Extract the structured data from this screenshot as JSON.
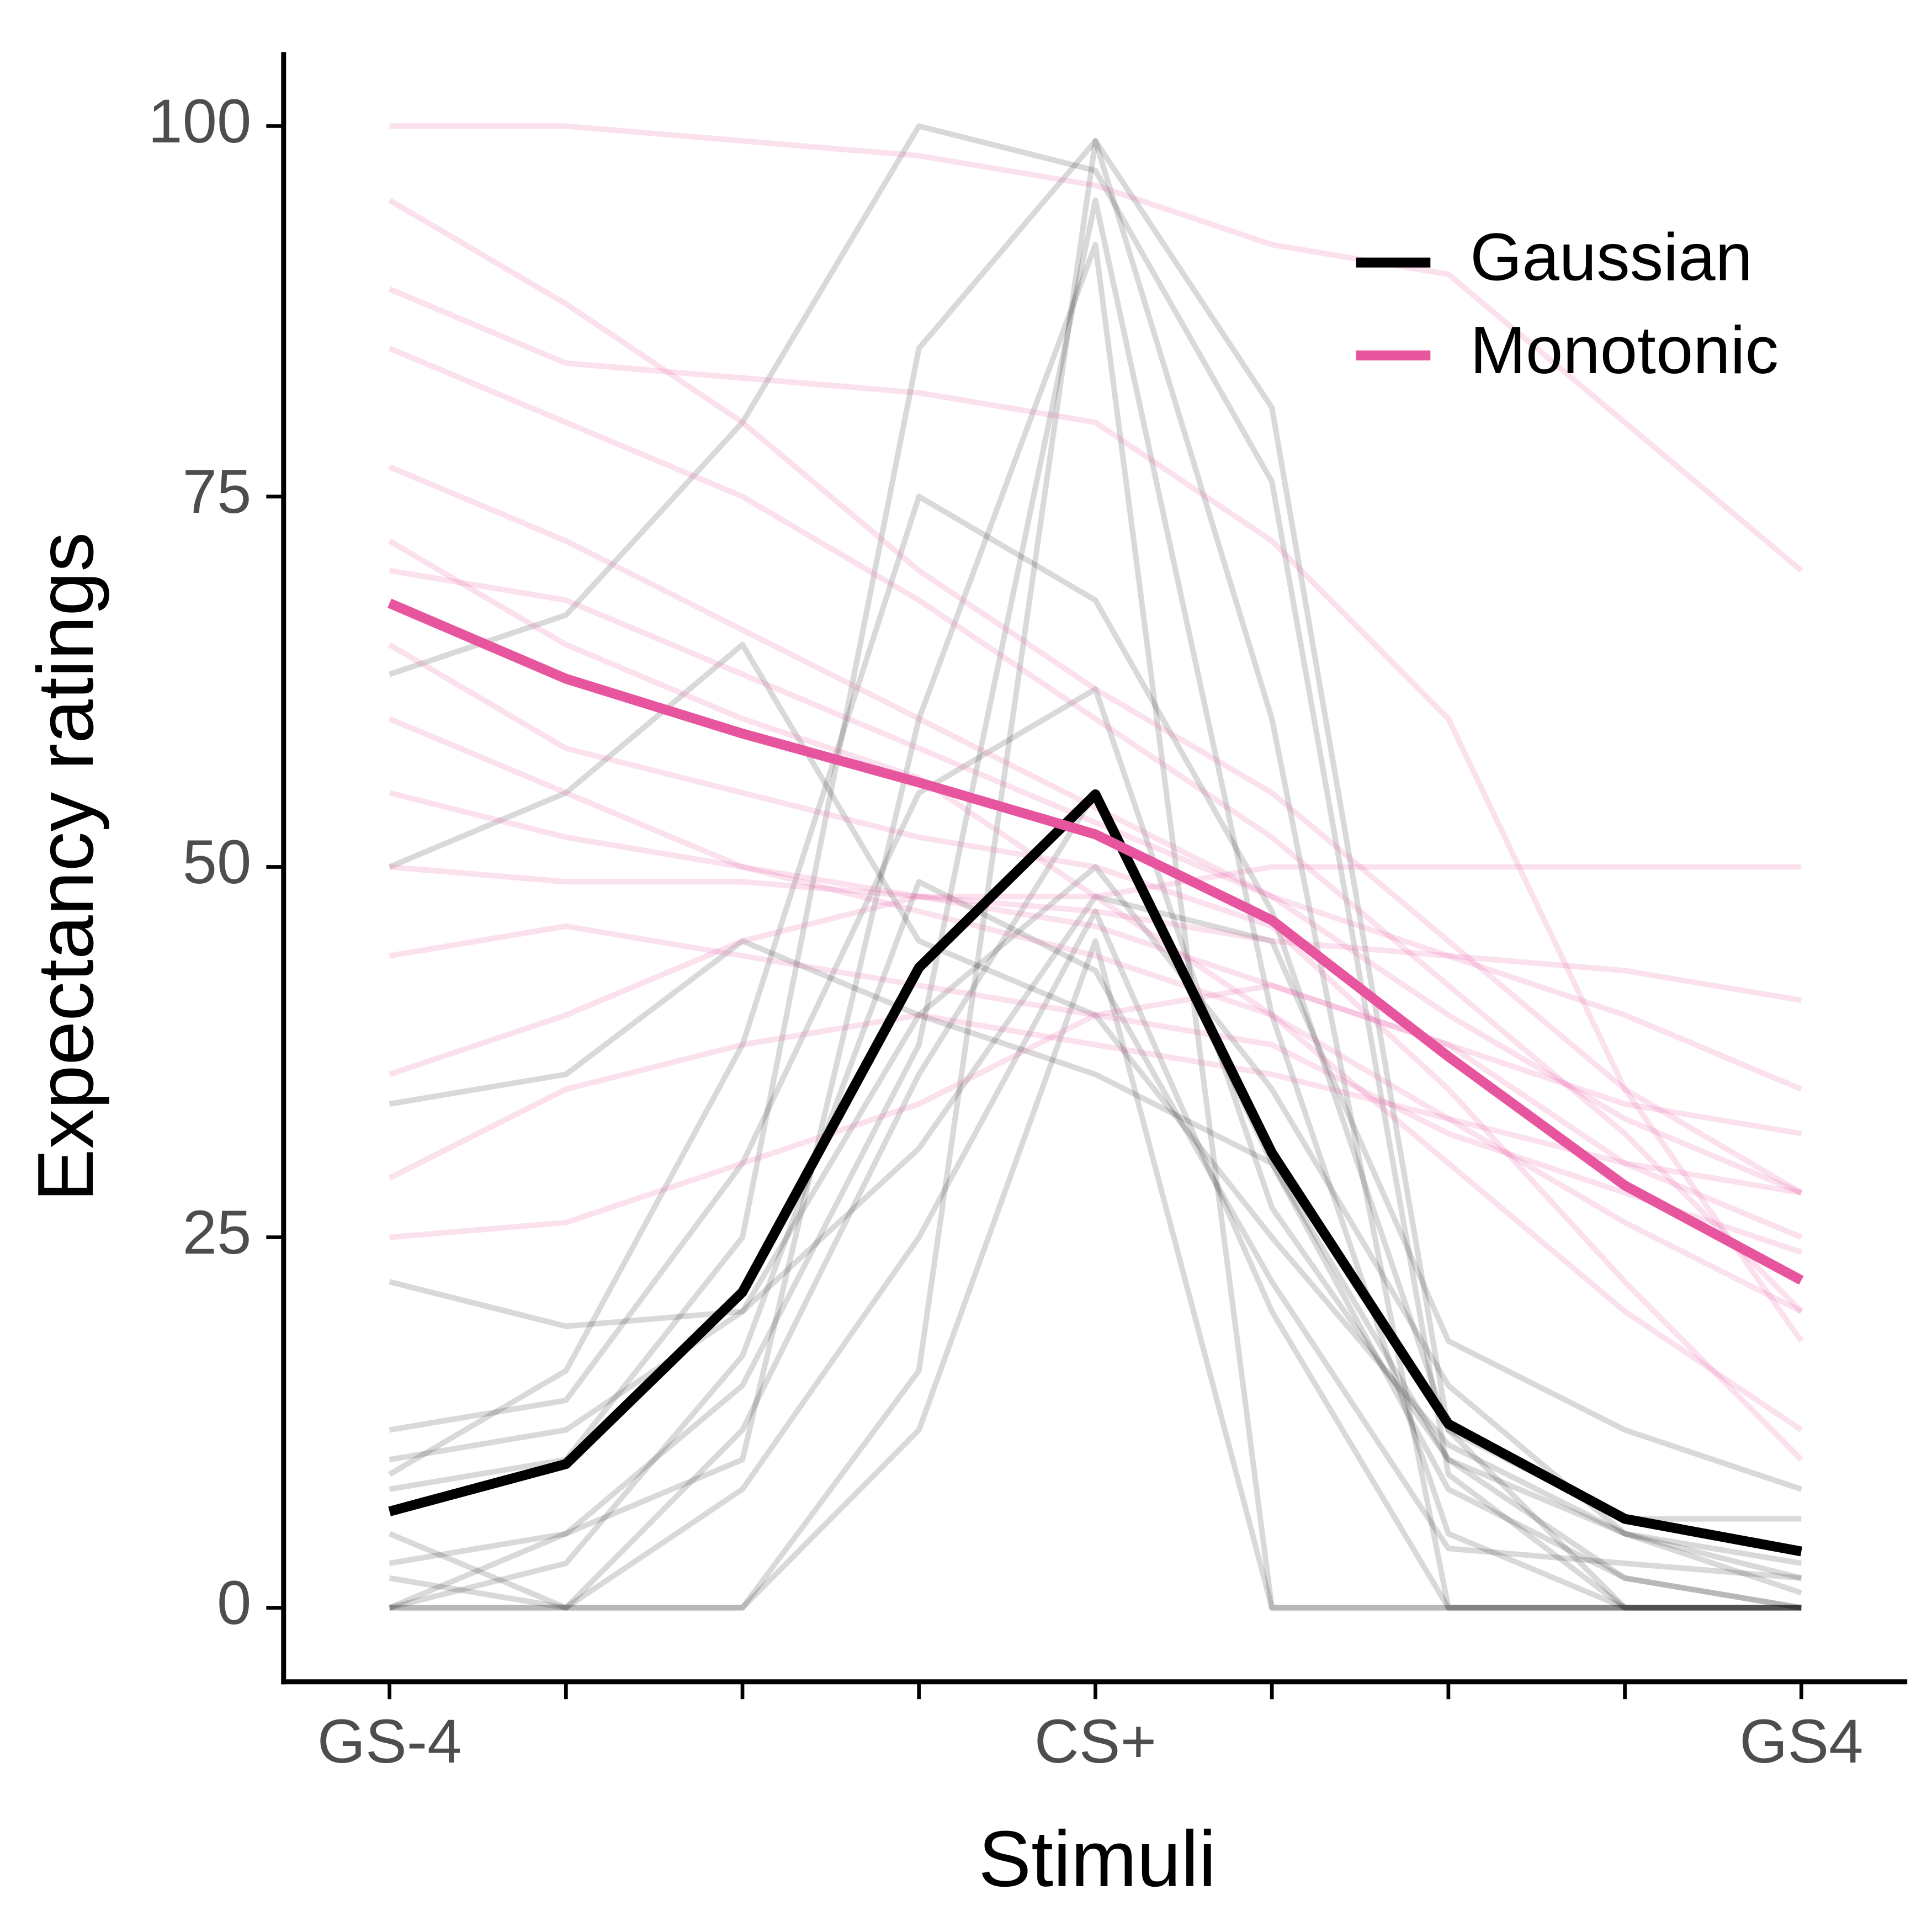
{
  "chart_data": {
    "type": "line",
    "x_label": "Stimuli",
    "y_label": "Expectancy ratings",
    "categories": [
      "GS-4",
      null,
      null,
      null,
      "CS+",
      null,
      null,
      null,
      "GS4"
    ],
    "ylim": [
      -5,
      105
    ],
    "yticks": [
      0,
      25,
      50,
      75,
      100
    ],
    "legend": "top-right",
    "series": [
      {
        "name": "Gaussian",
        "color": "#000000",
        "individual_opacity": 0.15,
        "values": [
          6.5,
          9.7,
          21.3,
          43.2,
          54.9,
          30.7,
          12.4,
          6.0,
          3.8
        ],
        "individuals": [
          [
            0,
            0,
            0,
            12,
            45,
            0,
            0,
            0,
            0
          ],
          [
            10,
            12,
            20,
            40,
            50,
            35,
            15,
            5,
            2
          ],
          [
            0,
            5,
            15,
            38,
            95,
            40,
            5,
            0,
            0
          ],
          [
            12,
            14,
            30,
            55,
            62,
            27,
            10,
            5,
            3
          ],
          [
            5,
            0,
            8,
            25,
            47,
            20,
            0,
            0,
            0
          ],
          [
            22,
            19,
            20,
            31,
            48,
            45,
            18,
            12,
            8
          ],
          [
            3,
            5,
            10,
            60,
            92,
            0,
            0,
            0,
            0
          ],
          [
            34,
            36,
            45,
            40,
            36,
            30,
            8,
            2,
            0
          ],
          [
            0,
            0,
            0,
            16,
            99,
            81,
            12,
            0,
            0
          ],
          [
            63,
            67,
            80,
            100,
            97,
            76,
            9,
            0,
            0
          ],
          [
            50,
            55,
            65,
            45,
            40,
            25,
            11,
            5,
            1
          ],
          [
            8,
            10,
            25,
            85,
            99,
            60,
            0,
            0,
            0
          ],
          [
            0,
            3,
            17,
            49,
            43,
            22,
            4,
            3,
            2
          ],
          [
            2,
            0,
            12,
            36,
            55,
            30,
            10,
            2,
            0
          ],
          [
            9,
            16,
            38,
            75,
            68,
            47,
            12,
            6,
            6
          ]
        ]
      },
      {
        "name": "Monotonic",
        "color": "#e8559f",
        "individual_opacity": 0.18,
        "values": [
          67.8,
          62.7,
          59.0,
          55.7,
          52.2,
          46.4,
          37.2,
          28.5,
          22.1
        ],
        "individuals": [
          [
            100,
            100,
            99,
            98,
            96,
            92,
            90,
            80,
            70
          ],
          [
            95,
            88,
            80,
            70,
            62,
            55,
            45,
            35,
            28
          ],
          [
            77,
            72,
            66,
            60,
            54,
            48,
            40,
            33,
            28
          ],
          [
            50,
            49,
            49,
            48,
            48,
            50,
            50,
            50,
            50
          ],
          [
            36,
            40,
            45,
            48,
            47,
            45,
            44,
            43,
            41
          ],
          [
            25,
            26,
            30,
            34,
            40,
            42,
            38,
            30,
            25
          ],
          [
            85,
            80,
            75,
            68,
            60,
            52,
            42,
            32,
            20
          ],
          [
            65,
            58,
            55,
            52,
            50,
            46,
            35,
            22,
            10
          ],
          [
            89,
            84,
            83,
            82,
            80,
            72,
            60,
            35,
            18
          ],
          [
            72,
            65,
            60,
            56,
            48,
            40,
            30,
            20,
            12
          ],
          [
            55,
            52,
            50,
            48,
            46,
            42,
            38,
            34,
            32
          ],
          [
            44,
            46,
            44,
            42,
            40,
            38,
            32,
            28,
            24
          ],
          [
            60,
            55,
            50,
            47,
            44,
            40,
            33,
            26,
            20
          ],
          [
            70,
            68,
            63,
            58,
            53,
            48,
            44,
            40,
            35
          ],
          [
            29,
            35,
            38,
            40,
            38,
            36,
            33,
            30,
            28
          ]
        ]
      }
    ]
  }
}
